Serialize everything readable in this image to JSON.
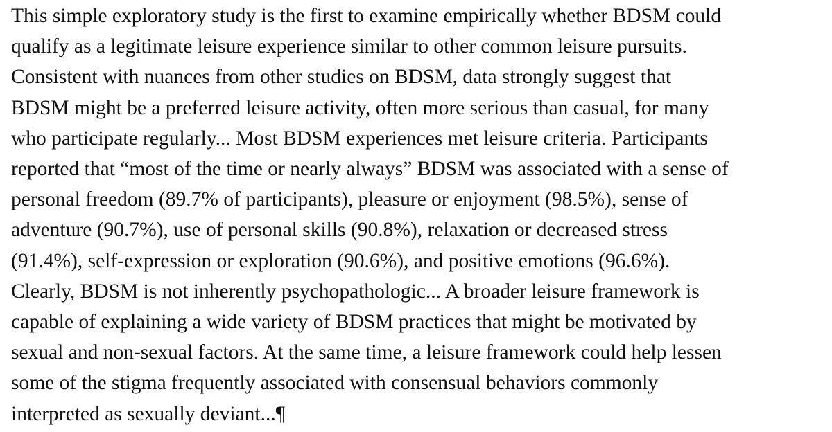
{
  "paragraph": {
    "lines": [
      "This simple exploratory study is the first to examine empirically whether BDSM could",
      "qualify as a legitimate leisure experience similar to other common leisure pursuits.",
      "Consistent with nuances from other studies on BDSM, data strongly suggest that",
      "BDSM might be a preferred leisure activity, often more serious than casual, for many",
      "who participate regularly... Most BDSM experiences met leisure criteria. Participants",
      "reported that “most of the time or nearly always” BDSM was associated with a sense of",
      "personal freedom (89.7% of participants), pleasure or enjoyment (98.5%), sense of",
      "adventure (90.7%), use of personal skills (90.8%), relaxation or decreased stress",
      "(91.4%), self-expression or exploration (90.6%), and positive emotions (96.6%).",
      "Clearly, BDSM is not inherently psychopathologic... A broader leisure framework is",
      "capable of explaining a wide variety of BDSM practices that might be motivated by",
      "sexual and non-sexual factors. At the same time, a leisure framework could help lessen",
      "some of the stigma frequently associated with consensual behaviors commonly",
      "interpreted as sexually deviant...¶"
    ]
  }
}
